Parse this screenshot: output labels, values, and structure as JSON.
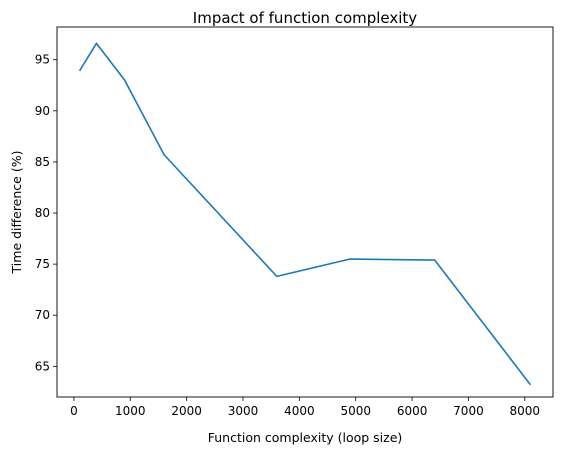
{
  "chart_data": {
    "type": "line",
    "title": "Impact of function complexity",
    "xlabel": "Function complexity (loop size)",
    "ylabel": "Time difference (%)",
    "xlim": [
      -300,
      8500
    ],
    "ylim": [
      62.0,
      98.2
    ],
    "xticks": [
      0,
      1000,
      2000,
      3000,
      4000,
      5000,
      6000,
      7000,
      8000
    ],
    "yticks": [
      65,
      70,
      75,
      80,
      85,
      90,
      95
    ],
    "grid": false,
    "legend": "none",
    "series": [
      {
        "color": "#1f77b4",
        "x": [
          100,
          400,
          900,
          1600,
          3600,
          4900,
          6400,
          8100
        ],
        "y": [
          93.9,
          96.6,
          93.0,
          85.7,
          73.8,
          75.5,
          75.4,
          63.2
        ]
      }
    ]
  }
}
